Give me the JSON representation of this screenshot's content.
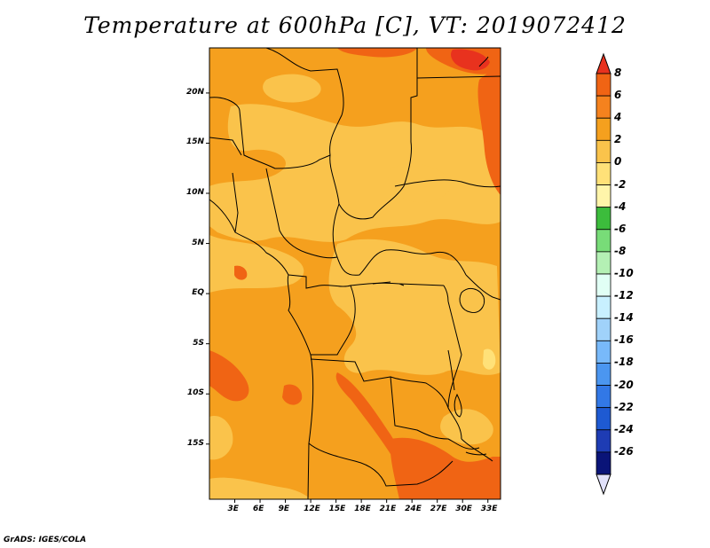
{
  "title": "Temperature at 600hPa [C], VT: 2019072412",
  "credit": "GrADS: IGES/COLA",
  "map": {
    "lat_labels": [
      "20N",
      "15N",
      "10N",
      "5N",
      "EQ",
      "5S",
      "10S",
      "15S"
    ],
    "lon_labels": [
      "3E",
      "6E",
      "9E",
      "12E",
      "15E",
      "18E",
      "21E",
      "24E",
      "27E",
      "30E",
      "33E"
    ],
    "lat_range": [
      -20.5,
      24.5
    ],
    "lon_range": [
      0,
      34.5
    ]
  },
  "colorbar": {
    "labels": [
      "8",
      "6",
      "4",
      "2",
      "0",
      "-2",
      "-4",
      "-6",
      "-8",
      "-10",
      "-12",
      "-14",
      "-16",
      "-18",
      "-20",
      "-22",
      "-24",
      "-26"
    ],
    "colors": [
      "#e8321e",
      "#f06414",
      "#f5821e",
      "#f5a01e",
      "#fac34b",
      "#ffe178",
      "#fff5aa",
      "#3cbc3c",
      "#78dc78",
      "#b4f0b4",
      "#e1fff5",
      "#c8f0ff",
      "#a0d2fa",
      "#78b9fa",
      "#4b96f0",
      "#3278e6",
      "#1e5ad2",
      "#1e3cb4",
      "#0a1478",
      "#e1e1fa"
    ]
  }
}
